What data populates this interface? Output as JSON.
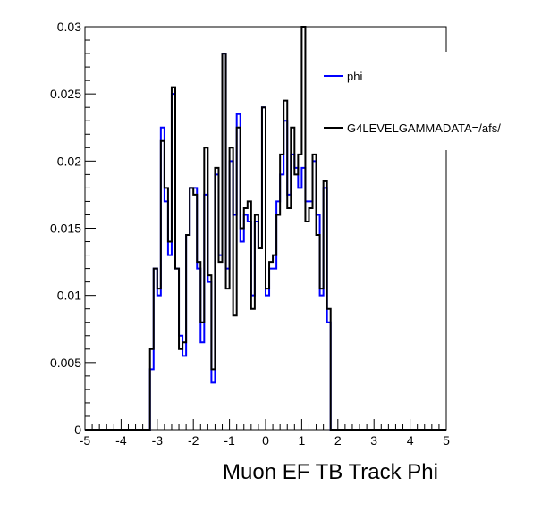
{
  "chart_data": {
    "type": "histogram",
    "xlabel": "Muon EF TB Track Phi",
    "ylabel": "",
    "xlim": [
      -5,
      5
    ],
    "ylim": [
      0,
      0.03
    ],
    "x_ticks": [
      "-5",
      "-4",
      "-3",
      "-2",
      "-1",
      "0",
      "1",
      "2",
      "3",
      "4",
      "5"
    ],
    "y_ticks": [
      "0",
      "0.005",
      "0.01",
      "0.015",
      "0.02",
      "0.025",
      "0.03"
    ],
    "bin_width": 0.1,
    "grid": false,
    "legend_position": "top-right",
    "series": [
      {
        "name": "phi",
        "color": "#0000ff",
        "bin_start": -3.2,
        "values": [
          0.0045,
          0.012,
          0.01,
          0.0225,
          0.017,
          0.013,
          0.025,
          0.012,
          0.007,
          0.0055,
          0.0145,
          0.018,
          0.018,
          0.012,
          0.0065,
          0.0175,
          0.011,
          0.0035,
          0.019,
          0.013,
          0.028,
          0.012,
          0.02,
          0.016,
          0.0235,
          0.014,
          0.016,
          0.0155,
          0.01,
          0.0155,
          0.0135,
          0.024,
          0.01,
          0.012,
          0.012,
          0.017,
          0.019,
          0.023,
          0.0175,
          0.0205,
          0.0195,
          0.018,
          0.0195,
          0.017,
          0.017,
          0.02,
          0.016,
          0.01,
          0.018,
          0.008
        ]
      },
      {
        "name": "G4LEVELGAMMADATA=/afs/",
        "color": "#000000",
        "bin_start": -3.2,
        "values": [
          0.006,
          0.012,
          0.0105,
          0.0215,
          0.018,
          0.014,
          0.0255,
          0.012,
          0.006,
          0.0065,
          0.0145,
          0.018,
          0.0175,
          0.0125,
          0.008,
          0.021,
          0.0115,
          0.0045,
          0.0195,
          0.0125,
          0.028,
          0.0105,
          0.021,
          0.0085,
          0.0225,
          0.015,
          0.0165,
          0.017,
          0.009,
          0.016,
          0.0135,
          0.024,
          0.0105,
          0.0125,
          0.013,
          0.016,
          0.0205,
          0.0245,
          0.0165,
          0.0225,
          0.019,
          0.0205,
          0.03,
          0.0155,
          0.0165,
          0.0205,
          0.0145,
          0.0105,
          0.0185,
          0.009
        ]
      }
    ]
  }
}
